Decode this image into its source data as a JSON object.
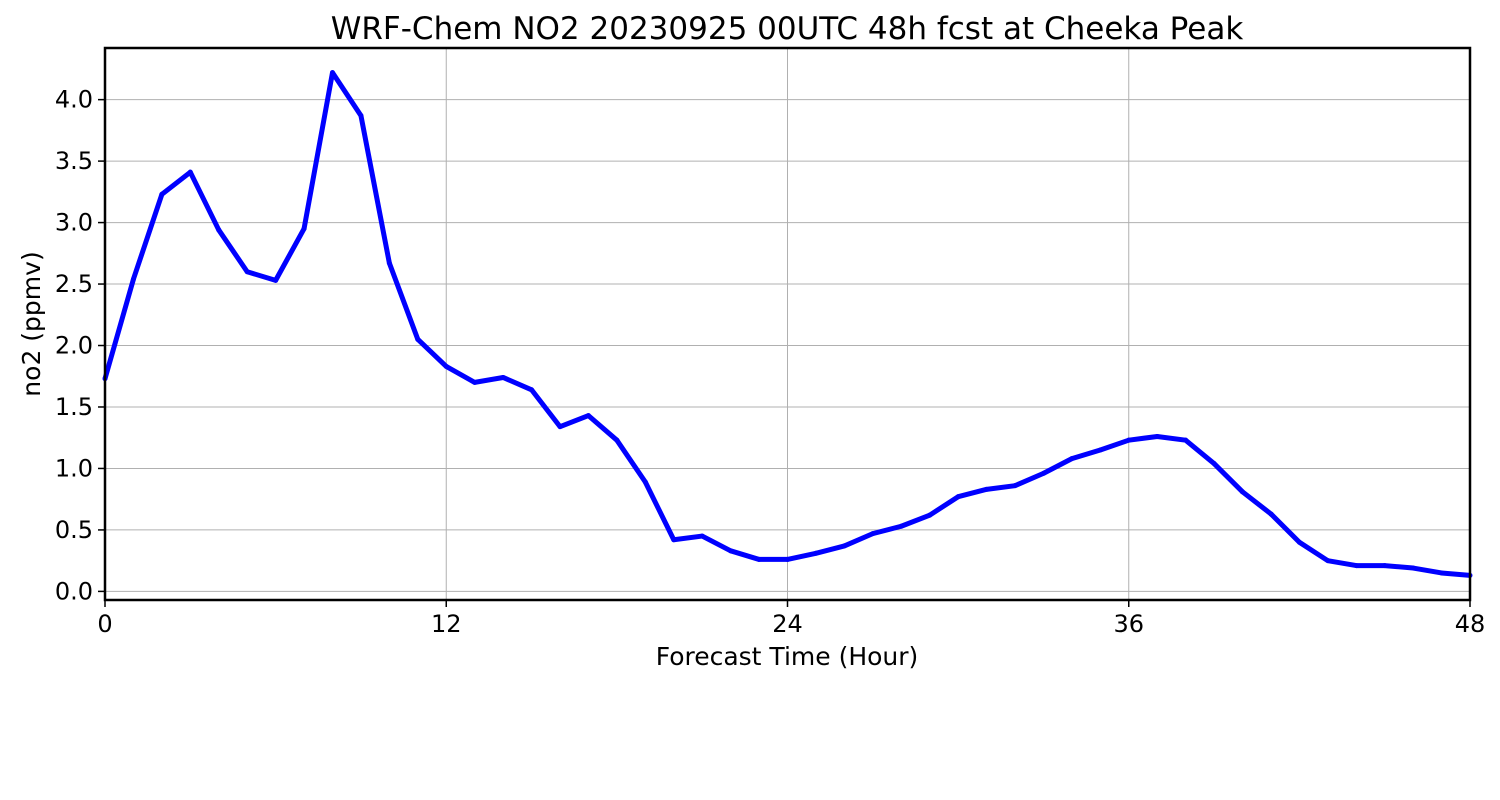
{
  "chart_data": {
    "type": "line",
    "title": "WRF-Chem NO2  20230925 00UTC 48h fcst at Cheeka Peak",
    "xlabel": "Forecast Time (Hour)",
    "ylabel": "no2  (ppmv)",
    "xlim": [
      0,
      48
    ],
    "ylim": [
      -0.07,
      4.42
    ],
    "xticks": [
      0,
      12,
      24,
      36,
      48
    ],
    "xtick_labels": [
      "0",
      "12",
      "24",
      "36",
      "48"
    ],
    "yticks": [
      0.0,
      0.5,
      1.0,
      1.5,
      2.0,
      2.5,
      3.0,
      3.5,
      4.0
    ],
    "ytick_labels": [
      "0.0",
      "0.5",
      "1.0",
      "1.5",
      "2.0",
      "2.5",
      "3.0",
      "3.5",
      "4.0"
    ],
    "grid": true,
    "series": [
      {
        "color": "#0000ff",
        "x": [
          0,
          1,
          2,
          3,
          4,
          5,
          6,
          7,
          8,
          9,
          10,
          11,
          12,
          13,
          14,
          15,
          16,
          17,
          18,
          19,
          20,
          21,
          22,
          23,
          24,
          25,
          26,
          27,
          28,
          29,
          30,
          31,
          32,
          33,
          34,
          35,
          36,
          37,
          38,
          39,
          40,
          41,
          42,
          43,
          44,
          45,
          46,
          47,
          48
        ],
        "values": [
          1.73,
          2.54,
          3.23,
          3.41,
          2.94,
          2.6,
          2.53,
          2.95,
          4.22,
          3.87,
          2.67,
          2.05,
          1.83,
          1.7,
          1.74,
          1.64,
          1.34,
          1.43,
          1.23,
          0.89,
          0.42,
          0.45,
          0.33,
          0.26,
          0.26,
          0.31,
          0.37,
          0.47,
          0.53,
          0.62,
          0.77,
          0.83,
          0.86,
          0.96,
          1.08,
          1.15,
          1.23,
          1.26,
          1.23,
          1.04,
          0.81,
          0.63,
          0.4,
          0.25,
          0.21,
          0.21,
          0.19,
          0.15,
          0.13
        ]
      }
    ]
  }
}
